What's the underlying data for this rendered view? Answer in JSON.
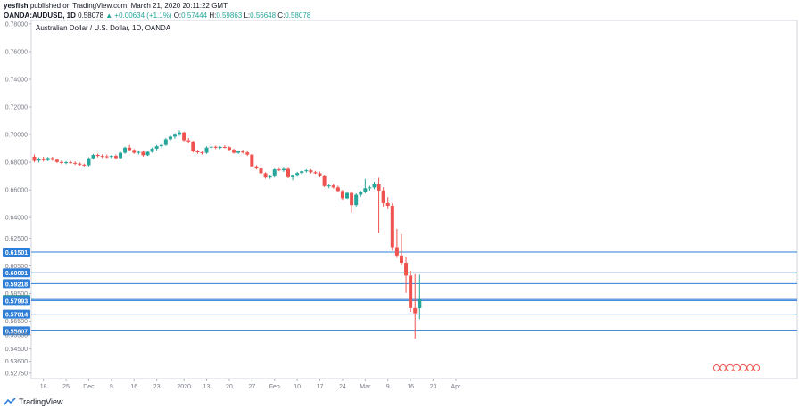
{
  "header": {
    "author": "yesfish",
    "publish_text": "published on TradingView.com, March 21, 2020 20:11:22 GMT",
    "symbol_line": "OANDA:AUDUSD, 1D",
    "last": "0.58078",
    "change": "▲ +0.00634 (+1.1%)",
    "o_label": "O:",
    "o": "0.57444",
    "h_label": "H:",
    "h": "0.59863",
    "l_label": "L:",
    "l": "0.56648",
    "c_label": "C:",
    "c": "0.58078"
  },
  "footer": {
    "brand": "TradingView"
  },
  "colors": {
    "up": "#26a69a",
    "down": "#ef5350",
    "hline": "#2e7ed8",
    "axis": "#787b86",
    "label_bg": "#2e7ed8"
  },
  "chart_data": {
    "type": "candlestick",
    "title": "Australian Dollar / U.S. Dollar, 1D, OANDA",
    "xlabel": "",
    "ylabel": "",
    "ylim": [
      0.5235,
      0.7825
    ],
    "grid": false,
    "y_ticks": [
      "0.78000",
      "0.76000",
      "0.74000",
      "0.72000",
      "0.70000",
      "0.68000",
      "0.66000",
      "0.64000",
      "0.62500",
      "0.60500",
      "0.58500",
      "0.56500",
      "0.55500",
      "0.54500",
      "0.53600",
      "0.52750"
    ],
    "y_tick_values": [
      0.78,
      0.76,
      0.74,
      0.72,
      0.7,
      0.68,
      0.66,
      0.64,
      0.625,
      0.605,
      0.585,
      0.565,
      0.555,
      0.545,
      0.536,
      0.5275
    ],
    "x_ticks": [
      "18",
      "25",
      "Dec",
      "9",
      "16",
      "23",
      "2020",
      "13",
      "20",
      "27",
      "Feb",
      "10",
      "17",
      "24",
      "Mar",
      "9",
      "16",
      "23",
      "Apr"
    ],
    "x_tick_index": [
      2,
      7,
      12,
      17,
      22,
      27,
      33,
      38,
      43,
      48,
      53,
      58,
      63,
      68,
      73,
      78,
      83,
      88,
      93
    ],
    "price_lines": [
      {
        "value": 0.61501,
        "label": "0.61501",
        "bg": "#2e7ed8"
      },
      {
        "value": 0.60001,
        "label": "0.60001",
        "bg": "#2e7ed8"
      },
      {
        "value": 0.59218,
        "label": "0.59218",
        "bg": "#2e7ed8"
      },
      {
        "value": 0.58078,
        "label": "0.58078",
        "bg": "#26a69a"
      },
      {
        "value": 0.57993,
        "label": "0.57993",
        "bg": "#2e7ed8"
      },
      {
        "value": 0.57014,
        "label": "0.57014",
        "bg": "#2e7ed8"
      },
      {
        "value": 0.55807,
        "label": "0.55807",
        "bg": "#2e7ed8"
      }
    ],
    "candles": [
      {
        "o": 0.684,
        "h": 0.6855,
        "l": 0.68,
        "c": 0.681
      },
      {
        "o": 0.6812,
        "h": 0.6835,
        "l": 0.6798,
        "c": 0.6825
      },
      {
        "o": 0.6825,
        "h": 0.684,
        "l": 0.6805,
        "c": 0.6815
      },
      {
        "o": 0.6815,
        "h": 0.6838,
        "l": 0.6808,
        "c": 0.683
      },
      {
        "o": 0.683,
        "h": 0.684,
        "l": 0.681,
        "c": 0.6818
      },
      {
        "o": 0.6818,
        "h": 0.6825,
        "l": 0.6795,
        "c": 0.6802
      },
      {
        "o": 0.6802,
        "h": 0.6812,
        "l": 0.6785,
        "c": 0.6795
      },
      {
        "o": 0.6795,
        "h": 0.6808,
        "l": 0.6785,
        "c": 0.68
      },
      {
        "o": 0.68,
        "h": 0.681,
        "l": 0.679,
        "c": 0.6795
      },
      {
        "o": 0.6795,
        "h": 0.6805,
        "l": 0.678,
        "c": 0.679
      },
      {
        "o": 0.679,
        "h": 0.68,
        "l": 0.6775,
        "c": 0.6782
      },
      {
        "o": 0.6782,
        "h": 0.679,
        "l": 0.677,
        "c": 0.6778
      },
      {
        "o": 0.6778,
        "h": 0.6835,
        "l": 0.677,
        "c": 0.6828
      },
      {
        "o": 0.6828,
        "h": 0.686,
        "l": 0.682,
        "c": 0.6852
      },
      {
        "o": 0.6852,
        "h": 0.6862,
        "l": 0.6835,
        "c": 0.6845
      },
      {
        "o": 0.6845,
        "h": 0.6858,
        "l": 0.683,
        "c": 0.6842
      },
      {
        "o": 0.6842,
        "h": 0.6855,
        "l": 0.683,
        "c": 0.6838
      },
      {
        "o": 0.6838,
        "h": 0.6852,
        "l": 0.6828,
        "c": 0.6845
      },
      {
        "o": 0.6845,
        "h": 0.6855,
        "l": 0.682,
        "c": 0.683
      },
      {
        "o": 0.683,
        "h": 0.6875,
        "l": 0.6825,
        "c": 0.6868
      },
      {
        "o": 0.6868,
        "h": 0.6912,
        "l": 0.686,
        "c": 0.6905
      },
      {
        "o": 0.6905,
        "h": 0.6925,
        "l": 0.688,
        "c": 0.6888
      },
      {
        "o": 0.6888,
        "h": 0.6895,
        "l": 0.686,
        "c": 0.6868
      },
      {
        "o": 0.6868,
        "h": 0.6885,
        "l": 0.6855,
        "c": 0.6875
      },
      {
        "o": 0.6875,
        "h": 0.6885,
        "l": 0.684,
        "c": 0.685
      },
      {
        "o": 0.685,
        "h": 0.688,
        "l": 0.6845,
        "c": 0.6875
      },
      {
        "o": 0.6875,
        "h": 0.6905,
        "l": 0.6868,
        "c": 0.6898
      },
      {
        "o": 0.6898,
        "h": 0.6925,
        "l": 0.6885,
        "c": 0.6915
      },
      {
        "o": 0.6915,
        "h": 0.6935,
        "l": 0.69,
        "c": 0.6925
      },
      {
        "o": 0.6925,
        "h": 0.6975,
        "l": 0.6918,
        "c": 0.6965
      },
      {
        "o": 0.6965,
        "h": 0.6995,
        "l": 0.6955,
        "c": 0.6985
      },
      {
        "o": 0.6985,
        "h": 0.701,
        "l": 0.697,
        "c": 0.7005
      },
      {
        "o": 0.7005,
        "h": 0.703,
        "l": 0.699,
        "c": 0.7015
      },
      {
        "o": 0.7015,
        "h": 0.702,
        "l": 0.695,
        "c": 0.6958
      },
      {
        "o": 0.6958,
        "h": 0.6975,
        "l": 0.694,
        "c": 0.695
      },
      {
        "o": 0.695,
        "h": 0.6955,
        "l": 0.687,
        "c": 0.6878
      },
      {
        "o": 0.6878,
        "h": 0.689,
        "l": 0.686,
        "c": 0.6872
      },
      {
        "o": 0.6872,
        "h": 0.6882,
        "l": 0.6855,
        "c": 0.6868
      },
      {
        "o": 0.6868,
        "h": 0.6915,
        "l": 0.686,
        "c": 0.6905
      },
      {
        "o": 0.6905,
        "h": 0.692,
        "l": 0.689,
        "c": 0.6912
      },
      {
        "o": 0.6912,
        "h": 0.692,
        "l": 0.6895,
        "c": 0.6905
      },
      {
        "o": 0.6905,
        "h": 0.6918,
        "l": 0.6895,
        "c": 0.691
      },
      {
        "o": 0.691,
        "h": 0.6922,
        "l": 0.69,
        "c": 0.6908
      },
      {
        "o": 0.6908,
        "h": 0.6915,
        "l": 0.6882,
        "c": 0.689
      },
      {
        "o": 0.689,
        "h": 0.6898,
        "l": 0.6862,
        "c": 0.6868
      },
      {
        "o": 0.6868,
        "h": 0.6885,
        "l": 0.686,
        "c": 0.6878
      },
      {
        "o": 0.6878,
        "h": 0.689,
        "l": 0.6862,
        "c": 0.687
      },
      {
        "o": 0.687,
        "h": 0.688,
        "l": 0.6845,
        "c": 0.6855
      },
      {
        "o": 0.6855,
        "h": 0.686,
        "l": 0.676,
        "c": 0.677
      },
      {
        "o": 0.677,
        "h": 0.6778,
        "l": 0.6748,
        "c": 0.6755
      },
      {
        "o": 0.6755,
        "h": 0.6765,
        "l": 0.6712,
        "c": 0.672
      },
      {
        "o": 0.672,
        "h": 0.6728,
        "l": 0.6682,
        "c": 0.669
      },
      {
        "o": 0.669,
        "h": 0.6705,
        "l": 0.668,
        "c": 0.6698
      },
      {
        "o": 0.6698,
        "h": 0.6755,
        "l": 0.669,
        "c": 0.6748
      },
      {
        "o": 0.6748,
        "h": 0.6758,
        "l": 0.6735,
        "c": 0.6742
      },
      {
        "o": 0.6742,
        "h": 0.676,
        "l": 0.673,
        "c": 0.6752
      },
      {
        "o": 0.6752,
        "h": 0.676,
        "l": 0.6685,
        "c": 0.6692
      },
      {
        "o": 0.6692,
        "h": 0.6712,
        "l": 0.667,
        "c": 0.6702
      },
      {
        "o": 0.6702,
        "h": 0.673,
        "l": 0.6695,
        "c": 0.6722
      },
      {
        "o": 0.6722,
        "h": 0.674,
        "l": 0.6712,
        "c": 0.6735
      },
      {
        "o": 0.6735,
        "h": 0.675,
        "l": 0.6725,
        "c": 0.6742
      },
      {
        "o": 0.6742,
        "h": 0.675,
        "l": 0.672,
        "c": 0.6728
      },
      {
        "o": 0.6728,
        "h": 0.6738,
        "l": 0.6715,
        "c": 0.672
      },
      {
        "o": 0.672,
        "h": 0.6732,
        "l": 0.669,
        "c": 0.6698
      },
      {
        "o": 0.6698,
        "h": 0.6705,
        "l": 0.662,
        "c": 0.6628
      },
      {
        "o": 0.6628,
        "h": 0.664,
        "l": 0.6612,
        "c": 0.6632
      },
      {
        "o": 0.6632,
        "h": 0.6645,
        "l": 0.661,
        "c": 0.6618
      },
      {
        "o": 0.6618,
        "h": 0.663,
        "l": 0.6585,
        "c": 0.6592
      },
      {
        "o": 0.6592,
        "h": 0.66,
        "l": 0.6525,
        "c": 0.654
      },
      {
        "o": 0.654,
        "h": 0.6585,
        "l": 0.6535,
        "c": 0.6578
      },
      {
        "o": 0.6578,
        "h": 0.6585,
        "l": 0.6435,
        "c": 0.649
      },
      {
        "o": 0.649,
        "h": 0.6575,
        "l": 0.648,
        "c": 0.6565
      },
      {
        "o": 0.6565,
        "h": 0.6595,
        "l": 0.655,
        "c": 0.6585
      },
      {
        "o": 0.6585,
        "h": 0.668,
        "l": 0.6575,
        "c": 0.6612
      },
      {
        "o": 0.6612,
        "h": 0.663,
        "l": 0.6595,
        "c": 0.6618
      },
      {
        "o": 0.6618,
        "h": 0.666,
        "l": 0.6605,
        "c": 0.664
      },
      {
        "o": 0.664,
        "h": 0.6688,
        "l": 0.629,
        "c": 0.6595
      },
      {
        "o": 0.6595,
        "h": 0.6618,
        "l": 0.648,
        "c": 0.6505
      },
      {
        "o": 0.6505,
        "h": 0.6548,
        "l": 0.646,
        "c": 0.6485
      },
      {
        "o": 0.6485,
        "h": 0.6505,
        "l": 0.616,
        "c": 0.6185
      },
      {
        "o": 0.6185,
        "h": 0.6318,
        "l": 0.6108,
        "c": 0.6125
      },
      {
        "o": 0.6125,
        "h": 0.628,
        "l": 0.6055,
        "c": 0.6072
      },
      {
        "o": 0.6072,
        "h": 0.6118,
        "l": 0.5855,
        "c": 0.598
      },
      {
        "o": 0.598,
        "h": 0.6015,
        "l": 0.5718,
        "c": 0.5745
      },
      {
        "o": 0.5745,
        "h": 0.599,
        "l": 0.5525,
        "c": 0.5708
      },
      {
        "o": 0.5744,
        "h": 0.5986,
        "l": 0.5665,
        "c": 0.5808
      }
    ]
  }
}
